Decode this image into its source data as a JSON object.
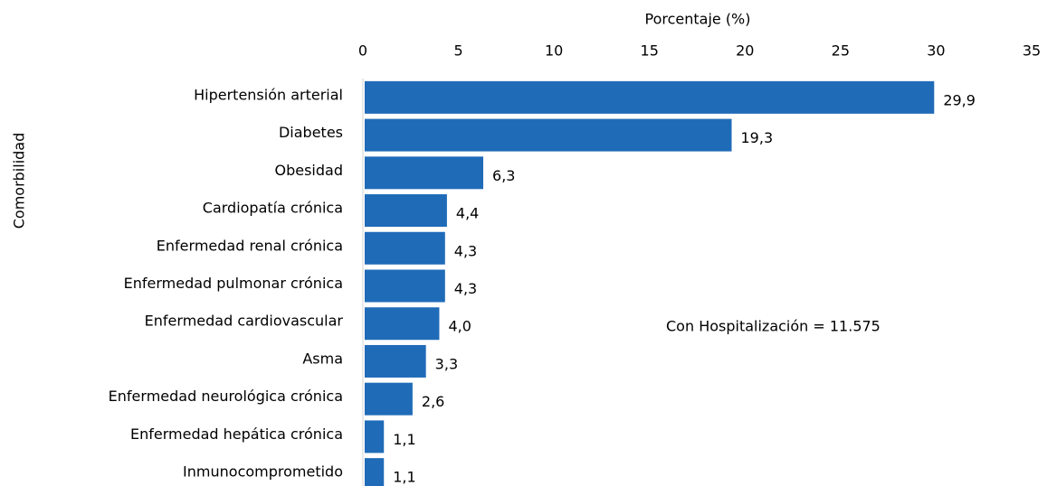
{
  "chart_data": {
    "type": "bar",
    "orientation": "horizontal",
    "xlabel": "Porcentaje (%)",
    "ylabel": "Comorbilidad",
    "annotation": "Con Hospitalización = 11.575",
    "categories": [
      "Hipertensión arterial",
      "Diabetes",
      "Obesidad",
      "Cardiopatía crónica",
      "Enfermedad renal crónica",
      "Enfermedad pulmonar crónica",
      "Enfermedad cardiovascular",
      "Asma",
      "Enfermedad neurológica crónica",
      "Enfermedad hepática crónica",
      "Inmunocomprometido"
    ],
    "values": [
      29.9,
      19.3,
      6.3,
      4.4,
      4.3,
      4.3,
      4.0,
      3.3,
      2.6,
      1.1,
      1.1
    ],
    "value_labels": [
      "29,9",
      "19,3",
      "6,3",
      "4,4",
      "4,3",
      "4,3",
      "4,0",
      "3,3",
      "2,6",
      "1,1",
      "1,1"
    ],
    "color": "#1f6bb8",
    "xlim": [
      0,
      35
    ],
    "xticks": [
      0,
      5,
      10,
      15,
      20,
      25,
      30,
      35
    ],
    "grid": false
  }
}
